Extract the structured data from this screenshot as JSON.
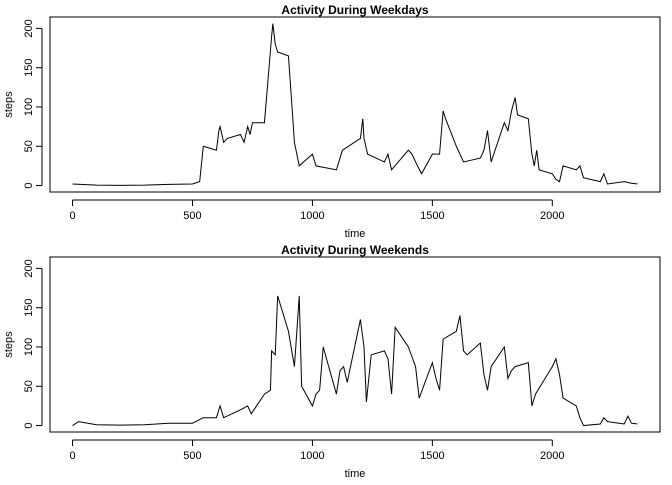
{
  "chart_data": [
    {
      "type": "line",
      "title": "Activity During Weekdays",
      "x_label": "time",
      "y_label": "steps",
      "x": [
        0,
        100,
        200,
        300,
        400,
        500,
        530,
        545,
        600,
        610,
        615,
        630,
        645,
        700,
        715,
        730,
        740,
        750,
        800,
        830,
        835,
        845,
        855,
        900,
        915,
        925,
        945,
        1000,
        1015,
        1100,
        1115,
        1125,
        1200,
        1210,
        1215,
        1230,
        1300,
        1315,
        1330,
        1400,
        1415,
        1430,
        1455,
        1500,
        1530,
        1545,
        1555,
        1600,
        1630,
        1700,
        1715,
        1730,
        1745,
        1800,
        1815,
        1830,
        1845,
        1855,
        1900,
        1915,
        1925,
        1935,
        1945,
        2000,
        2015,
        2030,
        2045,
        2100,
        2115,
        2130,
        2200,
        2215,
        2230,
        2300,
        2330,
        2355
      ],
      "series": [
        {
          "name": "steps",
          "color": "#000000",
          "values": [
            2,
            0.5,
            0.3,
            0.5,
            1.5,
            2,
            5,
            50,
            45,
            70,
            75,
            55,
            60,
            65,
            55,
            75,
            65,
            80,
            80,
            190,
            206,
            180,
            170,
            165,
            100,
            55,
            25,
            40,
            25,
            20,
            35,
            45,
            60,
            85,
            60,
            40,
            30,
            40,
            20,
            45,
            40,
            30,
            15,
            40,
            40,
            95,
            85,
            50,
            30,
            35,
            45,
            70,
            30,
            80,
            70,
            95,
            112,
            90,
            85,
            40,
            25,
            45,
            20,
            15,
            8,
            5,
            25,
            20,
            25,
            10,
            5,
            15,
            2,
            5,
            3,
            2
          ]
        }
      ],
      "xlim": [
        -94,
        2449
      ],
      "xticks": [
        0,
        500,
        1000,
        1500,
        2000
      ],
      "ylim": [
        -8.2,
        214.5
      ],
      "yticks": [
        0,
        50,
        100,
        150,
        200
      ]
    },
    {
      "type": "line",
      "title": "Activity During Weekends",
      "x_label": "time",
      "y_label": "steps",
      "x": [
        0,
        25,
        100,
        200,
        300,
        400,
        500,
        545,
        600,
        615,
        630,
        700,
        730,
        745,
        800,
        825,
        830,
        845,
        855,
        900,
        925,
        945,
        955,
        1000,
        1015,
        1030,
        1045,
        1100,
        1115,
        1130,
        1145,
        1200,
        1215,
        1225,
        1245,
        1300,
        1315,
        1330,
        1345,
        1400,
        1430,
        1445,
        1500,
        1515,
        1530,
        1545,
        1600,
        1615,
        1630,
        1645,
        1700,
        1715,
        1730,
        1745,
        1800,
        1815,
        1830,
        1845,
        1900,
        1915,
        1930,
        2000,
        2015,
        2030,
        2045,
        2100,
        2115,
        2130,
        2200,
        2215,
        2230,
        2300,
        2315,
        2330,
        2355
      ],
      "series": [
        {
          "name": "steps",
          "color": "#000000",
          "values": [
            0,
            5,
            1,
            0.5,
            1,
            3,
            3,
            10,
            10,
            25,
            10,
            20,
            25,
            15,
            40,
            45,
            95,
            90,
            165,
            120,
            75,
            165,
            50,
            25,
            40,
            45,
            100,
            40,
            70,
            75,
            55,
            135,
            100,
            30,
            90,
            95,
            85,
            40,
            125,
            100,
            75,
            35,
            80,
            60,
            45,
            110,
            120,
            140,
            95,
            90,
            105,
            65,
            45,
            75,
            100,
            60,
            70,
            75,
            80,
            25,
            40,
            75,
            85,
            65,
            35,
            25,
            10,
            0,
            2,
            10,
            5,
            2,
            12,
            3,
            2
          ]
        }
      ],
      "xlim": [
        -94,
        2449
      ],
      "xticks": [
        0,
        500,
        1000,
        1500,
        2000
      ],
      "ylim": [
        -8.2,
        214.5
      ],
      "yticks": [
        0,
        50,
        100,
        150,
        200
      ]
    }
  ]
}
